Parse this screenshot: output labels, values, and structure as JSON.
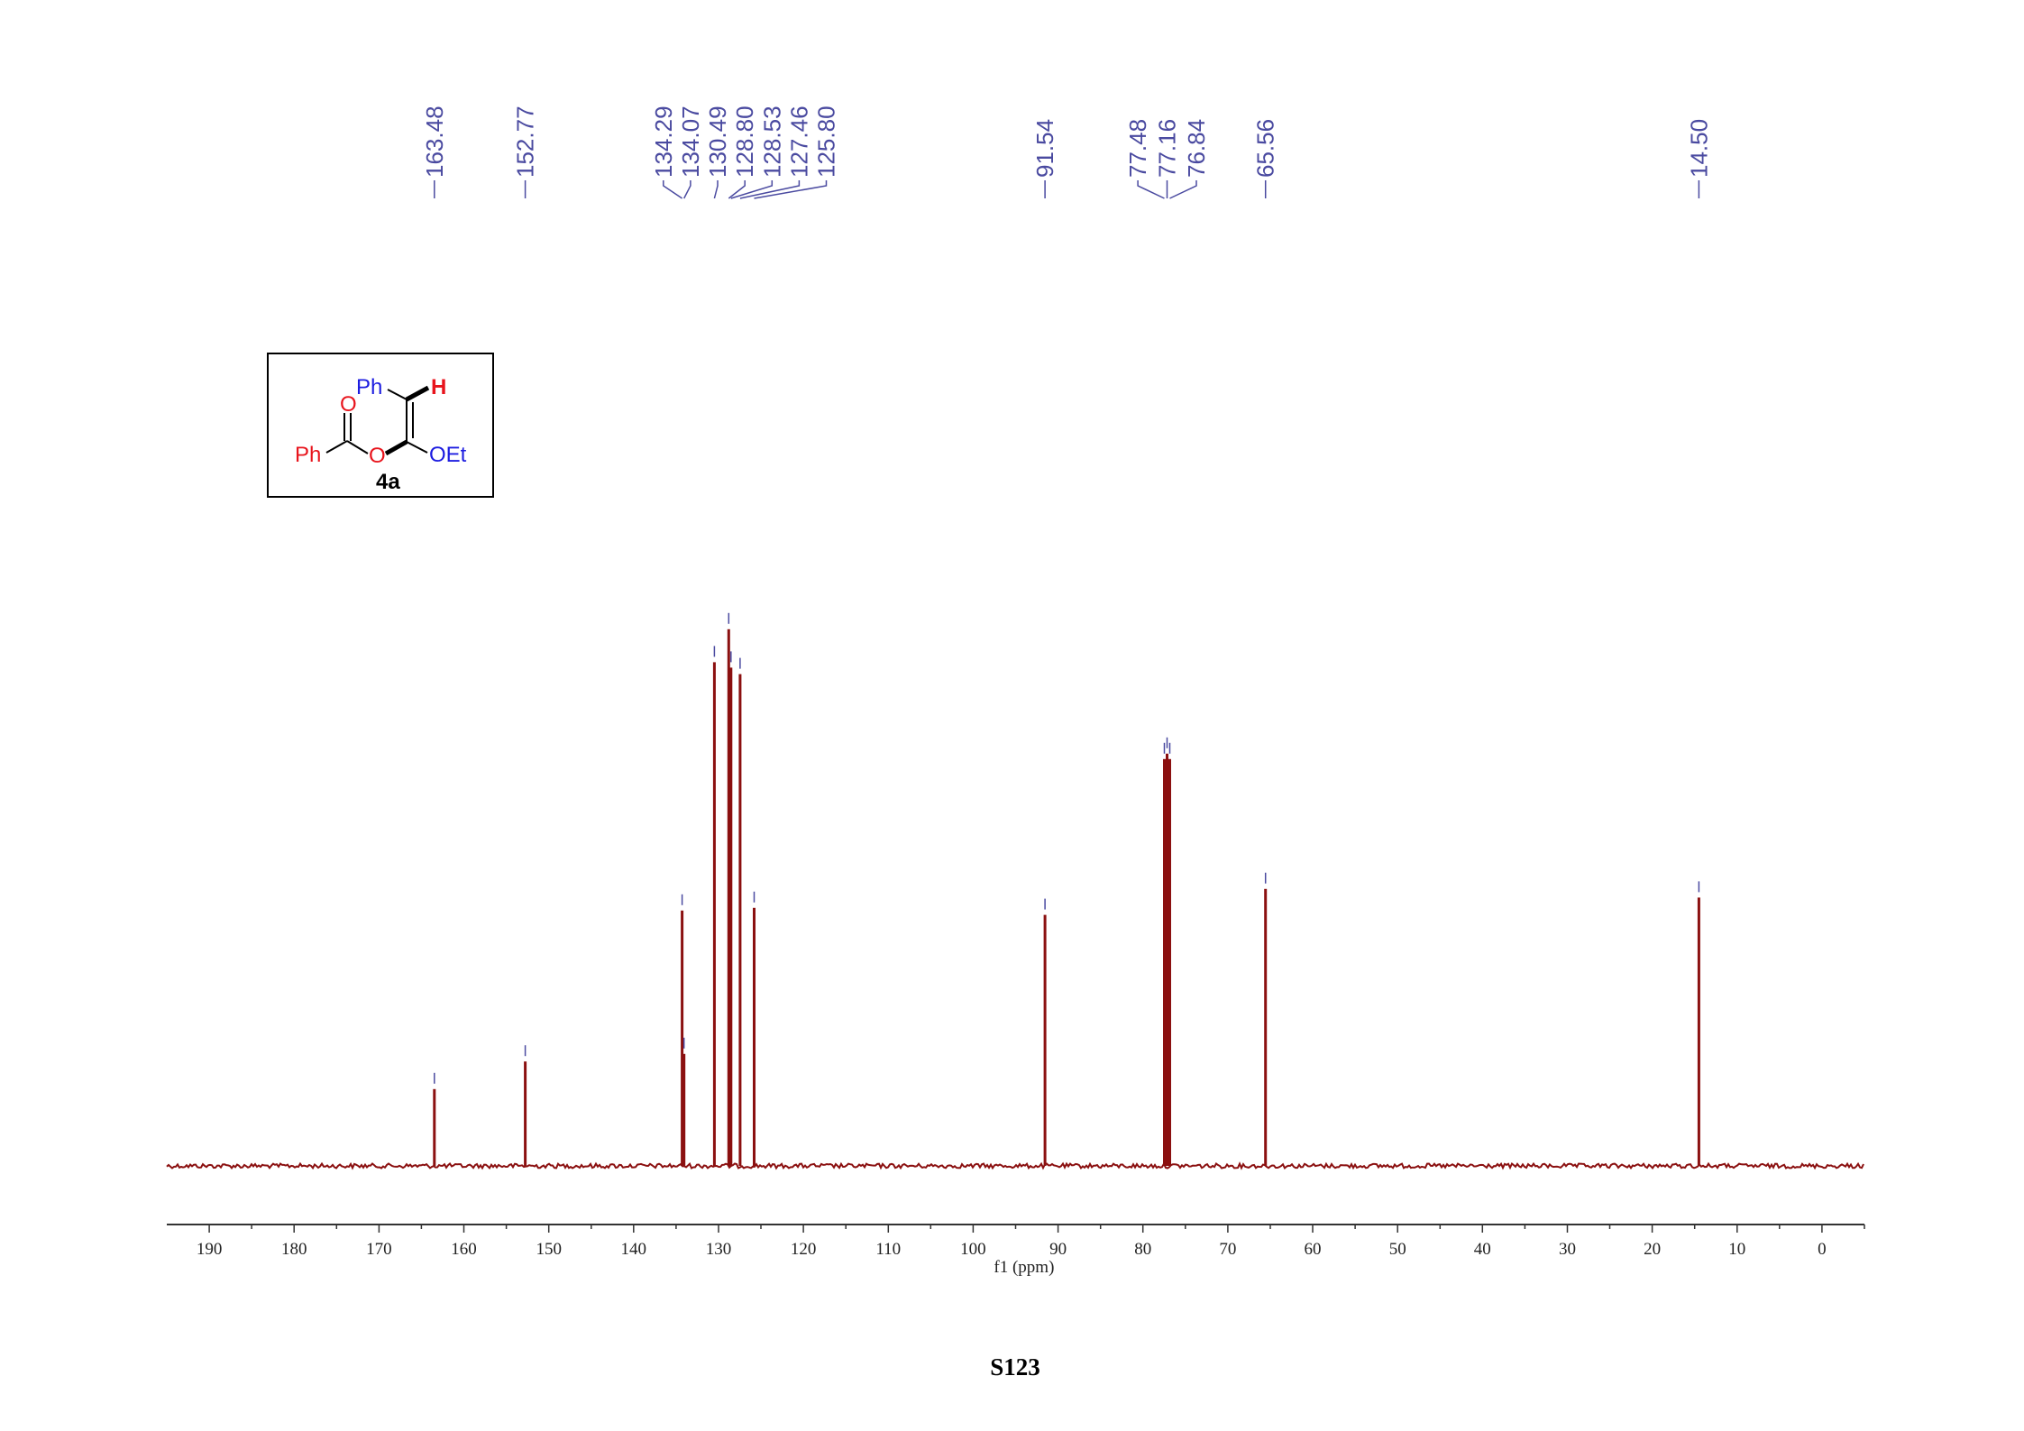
{
  "page_number": "S123",
  "compound": {
    "ph_top": "Ph",
    "h": "H",
    "o_carbonyl": "O",
    "ph_left": "Ph",
    "o_ester": "O",
    "oet": "OEt",
    "label": "4a",
    "colors": {
      "red": "#e8141c",
      "blue": "#1c1ce0",
      "black": "#000000"
    }
  },
  "chart_data": {
    "type": "line",
    "xlabel": "f1 (ppm)",
    "xlim": [
      195,
      -5
    ],
    "x_reversed": true,
    "x_ticks": [
      190,
      180,
      170,
      160,
      150,
      140,
      130,
      120,
      110,
      100,
      90,
      80,
      70,
      60,
      50,
      40,
      30,
      20,
      10,
      0
    ],
    "line_color": "#8b1010",
    "label_color": "#4a4aa0",
    "baseline_intensity": 0,
    "peaks": [
      {
        "ppm": 163.48,
        "intensity": 14.2,
        "label": "163.48"
      },
      {
        "ppm": 152.77,
        "intensity": 19.3,
        "label": "152.77"
      },
      {
        "ppm": 134.29,
        "intensity": 47.2,
        "label": "134.29"
      },
      {
        "ppm": 134.07,
        "intensity": 20.7,
        "label": "134.07"
      },
      {
        "ppm": 130.49,
        "intensity": 93.1,
        "label": "130.49"
      },
      {
        "ppm": 128.8,
        "intensity": 99.2,
        "label": "128.80"
      },
      {
        "ppm": 128.53,
        "intensity": 92.1,
        "label": "128.53"
      },
      {
        "ppm": 127.46,
        "intensity": 90.9,
        "label": "127.46"
      },
      {
        "ppm": 125.8,
        "intensity": 47.7,
        "label": "125.80"
      },
      {
        "ppm": 91.54,
        "intensity": 46.4,
        "label": "91.54"
      },
      {
        "ppm": 77.48,
        "intensity": 75.2,
        "label": "77.48"
      },
      {
        "ppm": 77.16,
        "intensity": 76.2,
        "label": "77.16"
      },
      {
        "ppm": 76.84,
        "intensity": 75.2,
        "label": "76.84"
      },
      {
        "ppm": 65.56,
        "intensity": 51.2,
        "label": "65.56"
      },
      {
        "ppm": 14.5,
        "intensity": 49.6,
        "label": "14.50"
      }
    ],
    "label_groups": [
      {
        "indices": [
          0
        ],
        "label_ppm": [
          163.48
        ]
      },
      {
        "indices": [
          1
        ],
        "label_ppm": [
          152.77
        ]
      },
      {
        "indices": [
          2,
          3,
          4,
          5,
          6,
          7,
          8
        ],
        "label_ppm": [
          136.5,
          133.3,
          130.1,
          126.9,
          123.7,
          120.5,
          117.3
        ]
      },
      {
        "indices": [
          9
        ],
        "label_ppm": [
          91.54
        ]
      },
      {
        "indices": [
          10,
          11,
          12
        ],
        "label_ppm": [
          80.6,
          77.16,
          73.7
        ]
      },
      {
        "indices": [
          13
        ],
        "label_ppm": [
          65.56
        ]
      },
      {
        "indices": [
          14
        ],
        "label_ppm": [
          14.5
        ]
      }
    ]
  }
}
